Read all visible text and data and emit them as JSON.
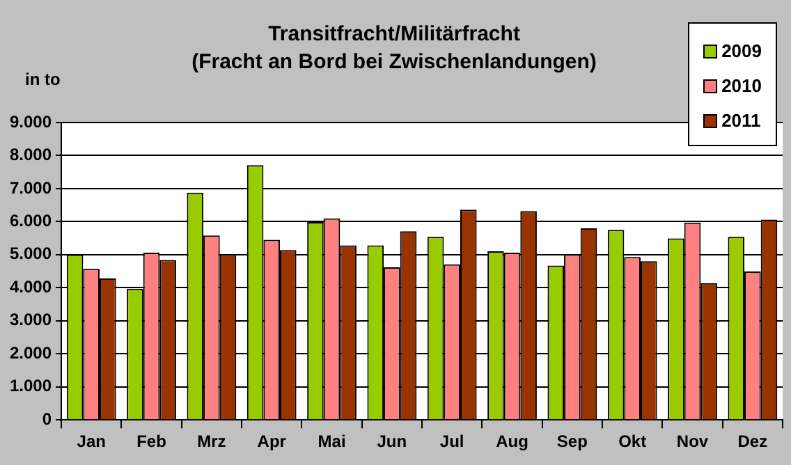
{
  "chart_data": {
    "type": "bar",
    "title": "Transitfracht/Militärfracht",
    "subtitle": "(Fracht an Bord bei Zwischenlandungen)",
    "ylabel": "in to",
    "categories": [
      "Jan",
      "Feb",
      "Mrz",
      "Apr",
      "Mai",
      "Jun",
      "Jul",
      "Aug",
      "Sep",
      "Okt",
      "Nov",
      "Dez"
    ],
    "series": [
      {
        "name": "2009",
        "color": "#99cc00",
        "values": [
          5000,
          3970,
          6880,
          7710,
          5990,
          5280,
          5540,
          5100,
          4670,
          5750,
          5490,
          5540
        ]
      },
      {
        "name": "2010",
        "color": "#ff8080",
        "values": [
          4570,
          5060,
          5580,
          5450,
          6100,
          4620,
          4710,
          5060,
          5010,
          4930,
          5970,
          4490
        ]
      },
      {
        "name": "2011",
        "color": "#993300",
        "values": [
          4280,
          4840,
          5010,
          5140,
          5280,
          5710,
          6360,
          6320,
          5800,
          4800,
          4140,
          6060
        ]
      }
    ],
    "ylim": [
      0,
      9000
    ],
    "yticks": [
      {
        "value": 0,
        "label": "0"
      },
      {
        "value": 1000,
        "label": "1.000"
      },
      {
        "value": 2000,
        "label": "2.000"
      },
      {
        "value": 3000,
        "label": "3.000"
      },
      {
        "value": 4000,
        "label": "4.000"
      },
      {
        "value": 5000,
        "label": "5.000"
      },
      {
        "value": 6000,
        "label": "6.000"
      },
      {
        "value": 7000,
        "label": "7.000"
      },
      {
        "value": 8000,
        "label": "8.000"
      },
      {
        "value": 9000,
        "label": "9.000"
      }
    ],
    "grid": "y",
    "legend": "top right"
  }
}
